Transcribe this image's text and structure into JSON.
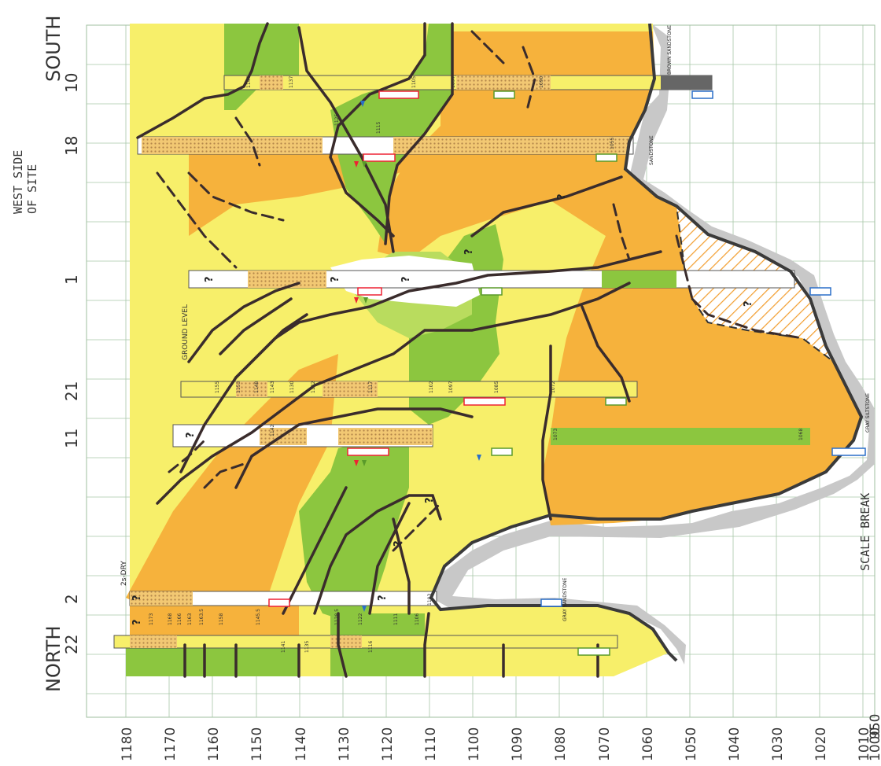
{
  "header": {
    "north": "NORTH",
    "south": "SOUTH",
    "west_side_line1": "WEST SIDE",
    "west_side_line2": "OF SITE",
    "ground_level": "GROUND LEVEL",
    "scale_break": "SCALE BREAK"
  },
  "elevation_ticks": [
    "1180",
    "1170",
    "1160",
    "1150",
    "1140",
    "1130",
    "1120",
    "1110",
    "1100",
    "1090",
    "1080",
    "1070",
    "1060",
    "1050",
    "1040",
    "1030",
    "1020",
    "1010",
    "1000",
    "950"
  ],
  "boreholes": [
    {
      "id": "22",
      "label": "22"
    },
    {
      "id": "2",
      "label": "2"
    },
    {
      "id": "11",
      "label": "11"
    },
    {
      "id": "21",
      "label": "21"
    },
    {
      "id": "1",
      "label": "1"
    },
    {
      "id": "18",
      "label": "18"
    },
    {
      "id": "10",
      "label": "10"
    }
  ],
  "notes": {
    "dry": "2s-DRY",
    "gray_sandstone": "GRAY SANDSTONE",
    "gray_siltstone": "GRAY SILTSTONE",
    "sandstone": "SANDSTONE",
    "brown_sandstone": "BROWN SANDSTONE"
  },
  "question_mark": "?",
  "small_labels": [
    "1173",
    "1168",
    "1166",
    "1163",
    "1163.5",
    "1158",
    "1145.5",
    "1141",
    "1135",
    "1128.5",
    "1122",
    "1116",
    "1111",
    "1106",
    "1103",
    "1155",
    "1153",
    "1148",
    "1143",
    "1130",
    "1125",
    "1115",
    "1117",
    "1142",
    "1132",
    "1102",
    "1097",
    "1085",
    "1072",
    "1073",
    "1068",
    "1055",
    "1147",
    "1137",
    "1105",
    "1097",
    "1090"
  ],
  "colors": {
    "yellow": "#f7f067",
    "orange": "#f6b23c",
    "green": "#8cc63f",
    "light_green": "#b9dc5e",
    "grid": "#a3c4a0",
    "bedrock": "#4a4a4a",
    "shadow": "#bdbdbd"
  }
}
